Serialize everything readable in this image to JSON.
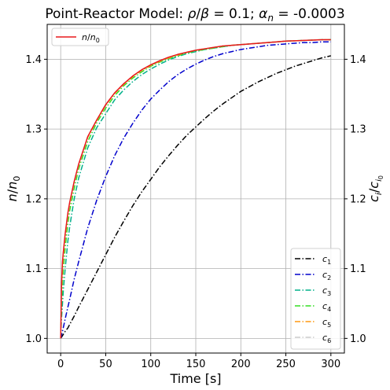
{
  "chart_data": {
    "type": "line",
    "title": "Point-Reactor Model: ρ/β = 0.1; α_n = -0.0003",
    "title_parts": {
      "prefix": "Point-Reactor Model: ",
      "rho": "ρ",
      "slash": "/",
      "beta": "β",
      "eq1": " = 0.1; ",
      "alpha": "α",
      "alpha_sub": "n",
      "eq2": " = -0.0003"
    },
    "xlabel": "Time [s]",
    "ylabel_left": {
      "main": "n",
      "slash": "/",
      "main2": "n",
      "sub": "0"
    },
    "ylabel_right": {
      "main": "c",
      "sub": "i",
      "slash": "/",
      "main2": "c",
      "sub2": "i",
      "sub2b": "0"
    },
    "xlim": [
      -15,
      315
    ],
    "ylim": [
      0.979,
      1.45
    ],
    "xticks": [
      0,
      50,
      100,
      150,
      200,
      250,
      300
    ],
    "yticks": [
      1.0,
      1.1,
      1.2,
      1.3,
      1.4
    ],
    "ytick_labels": [
      "1.0",
      "1.1",
      "1.2",
      "1.3",
      "1.4"
    ],
    "grid": true,
    "legend_left": {
      "placement": "top-left",
      "entries": [
        {
          "main": "n",
          "slash": "/",
          "main2": "n",
          "sub": "0",
          "color": "#e8191b"
        }
      ]
    },
    "legend_right": {
      "placement": "bottom-right",
      "entries": [
        {
          "main": "c",
          "sub": "1",
          "color": "#000000"
        },
        {
          "main": "c",
          "sub": "2",
          "color": "#0000cc"
        },
        {
          "main": "c",
          "sub": "3",
          "color": "#00b08a"
        },
        {
          "main": "c",
          "sub": "4",
          "color": "#33dd22"
        },
        {
          "main": "c",
          "sub": "5",
          "color": "#ff9911"
        },
        {
          "main": "c",
          "sub": "6",
          "color": "#cccccc"
        }
      ]
    },
    "x": [
      0,
      1,
      2,
      3,
      5,
      8,
      10,
      15,
      20,
      30,
      40,
      50,
      60,
      70,
      80,
      90,
      100,
      110,
      120,
      130,
      140,
      150,
      160,
      170,
      180,
      190,
      200,
      210,
      220,
      230,
      240,
      250,
      260,
      270,
      280,
      290,
      300
    ],
    "series": [
      {
        "name": "n/n0",
        "color": "#e8191b",
        "dash": "solid",
        "values": [
          1.0,
          1.08,
          1.11,
          1.125,
          1.15,
          1.18,
          1.195,
          1.225,
          1.25,
          1.289,
          1.313,
          1.335,
          1.352,
          1.365,
          1.376,
          1.385,
          1.392,
          1.398,
          1.403,
          1.407,
          1.41,
          1.413,
          1.415,
          1.417,
          1.419,
          1.42,
          1.421,
          1.422,
          1.423,
          1.424,
          1.425,
          1.426,
          1.4265,
          1.427,
          1.4275,
          1.428,
          1.428
        ]
      },
      {
        "name": "c1",
        "color": "#000000",
        "dash": "dashdot",
        "values": [
          1.0,
          1.002,
          1.004,
          1.006,
          1.01,
          1.015,
          1.02,
          1.032,
          1.045,
          1.07,
          1.095,
          1.12,
          1.145,
          1.168,
          1.19,
          1.21,
          1.228,
          1.246,
          1.262,
          1.277,
          1.291,
          1.303,
          1.315,
          1.326,
          1.336,
          1.345,
          1.354,
          1.361,
          1.368,
          1.374,
          1.38,
          1.385,
          1.39,
          1.394,
          1.398,
          1.402,
          1.405
        ]
      },
      {
        "name": "c2",
        "color": "#0000cc",
        "dash": "dashdot",
        "values": [
          1.0,
          1.005,
          1.01,
          1.016,
          1.028,
          1.045,
          1.056,
          1.085,
          1.11,
          1.158,
          1.198,
          1.232,
          1.262,
          1.287,
          1.308,
          1.327,
          1.343,
          1.356,
          1.368,
          1.378,
          1.386,
          1.393,
          1.399,
          1.404,
          1.408,
          1.411,
          1.414,
          1.416,
          1.418,
          1.42,
          1.421,
          1.422,
          1.423,
          1.424,
          1.424,
          1.425,
          1.425
        ]
      },
      {
        "name": "c3",
        "color": "#00b08a",
        "dash": "dashdot",
        "values": [
          1.0,
          1.03,
          1.05,
          1.07,
          1.1,
          1.14,
          1.16,
          1.2,
          1.23,
          1.273,
          1.302,
          1.322,
          1.342,
          1.356,
          1.368,
          1.378,
          1.386,
          1.393,
          1.399,
          1.404,
          1.408,
          1.411,
          1.414,
          1.416,
          1.418,
          1.42,
          1.421,
          1.422,
          1.423,
          1.424,
          1.425,
          1.426,
          1.4265,
          1.427,
          1.4275,
          1.428,
          1.428
        ]
      },
      {
        "name": "c4",
        "color": "#33dd22",
        "dash": "dashdot",
        "values": [
          1.0,
          1.05,
          1.08,
          1.1,
          1.13,
          1.165,
          1.183,
          1.215,
          1.243,
          1.282,
          1.309,
          1.33,
          1.348,
          1.362,
          1.373,
          1.382,
          1.39,
          1.396,
          1.401,
          1.405,
          1.409,
          1.412,
          1.414,
          1.416,
          1.418,
          1.42,
          1.421,
          1.422,
          1.423,
          1.424,
          1.425,
          1.426,
          1.4265,
          1.427,
          1.4275,
          1.428,
          1.428
        ]
      },
      {
        "name": "c5",
        "color": "#ff9911",
        "dash": "dashdot",
        "values": [
          1.0,
          1.07,
          1.1,
          1.118,
          1.145,
          1.177,
          1.192,
          1.223,
          1.248,
          1.288,
          1.312,
          1.334,
          1.351,
          1.364,
          1.375,
          1.384,
          1.391,
          1.397,
          1.402,
          1.406,
          1.41,
          1.413,
          1.415,
          1.417,
          1.419,
          1.42,
          1.421,
          1.422,
          1.423,
          1.424,
          1.425,
          1.426,
          1.4265,
          1.427,
          1.4275,
          1.428,
          1.428
        ]
      },
      {
        "name": "c6",
        "color": "#cccccc",
        "dash": "dashdot",
        "values": [
          1.0,
          1.078,
          1.108,
          1.124,
          1.149,
          1.179,
          1.194,
          1.224,
          1.249,
          1.289,
          1.313,
          1.335,
          1.352,
          1.365,
          1.376,
          1.385,
          1.392,
          1.398,
          1.403,
          1.407,
          1.41,
          1.413,
          1.415,
          1.417,
          1.419,
          1.42,
          1.421,
          1.422,
          1.423,
          1.424,
          1.425,
          1.426,
          1.4265,
          1.427,
          1.4275,
          1.428,
          1.428
        ]
      }
    ]
  }
}
